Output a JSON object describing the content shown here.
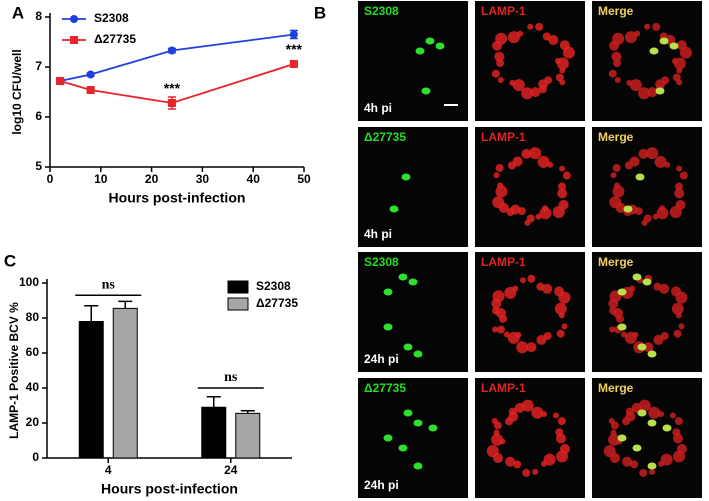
{
  "chart_data": [
    {
      "type": "line",
      "panel": "A",
      "xlabel": "Hours post-infection",
      "ylabel": "log10 CFU/well",
      "x": [
        2,
        8,
        24,
        48
      ],
      "series": [
        {
          "name": "S2308",
          "color": "#1f3fe0",
          "marker": "circle",
          "values": [
            6.72,
            6.85,
            7.33,
            7.65
          ],
          "errors": [
            0.03,
            0.03,
            0.04,
            0.08
          ]
        },
        {
          "name": "Δ27735",
          "color": "#e8232a",
          "marker": "square",
          "values": [
            6.72,
            6.54,
            6.28,
            7.06
          ],
          "errors": [
            0.05,
            0.03,
            0.12,
            0.03
          ]
        }
      ],
      "xlim": [
        0,
        50
      ],
      "xticks": [
        0,
        10,
        20,
        30,
        40,
        50
      ],
      "ylim": [
        5,
        8
      ],
      "yticks": [
        5,
        6,
        7,
        8
      ],
      "legend": "upper left",
      "annotations": [
        {
          "text": "***",
          "x": 24,
          "y": 6.55
        },
        {
          "text": "***",
          "x": 48,
          "y": 7.33
        }
      ]
    },
    {
      "type": "bar",
      "panel": "C",
      "xlabel": "Hours post-infection",
      "ylabel": "LAMP-1 Positive BCV %",
      "categories": [
        "4",
        "24"
      ],
      "series": [
        {
          "name": "S2308",
          "color": "#000000",
          "values": [
            78,
            29
          ],
          "errors": [
            9,
            6
          ]
        },
        {
          "name": "Δ27735",
          "color": "#a6a6a6",
          "values": [
            85.5,
            25.5
          ],
          "errors": [
            4,
            1.5
          ]
        }
      ],
      "ylim": [
        0,
        100
      ],
      "yticks": [
        0,
        20,
        40,
        60,
        80,
        100
      ],
      "legend": "upper right",
      "annotations": [
        {
          "text": "ns",
          "category": 0,
          "y": 93
        },
        {
          "text": "ns",
          "category": 1,
          "y": 40
        }
      ]
    }
  ],
  "panel_b": {
    "panel": "B",
    "rows": [
      {
        "labels": [
          "S2308",
          "LAMP-1",
          "Merge"
        ],
        "time": "4h pi"
      },
      {
        "labels": [
          "Δ27735",
          "LAMP-1",
          "Merge"
        ],
        "time": "4h pi"
      },
      {
        "labels": [
          "S2308",
          "LAMP-1",
          "Merge"
        ],
        "time": "24h pi"
      },
      {
        "labels": [
          "Δ27735",
          "LAMP-1",
          "Merge"
        ],
        "time": "24h pi"
      }
    ]
  }
}
